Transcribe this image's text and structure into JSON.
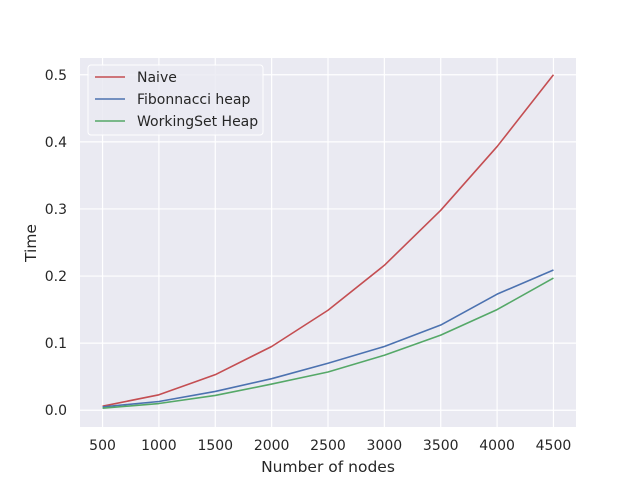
{
  "chart_data": {
    "type": "line",
    "title": "",
    "xlabel": "Number of nodes",
    "ylabel": "Time",
    "x": [
      500,
      1000,
      1500,
      2000,
      2500,
      3000,
      3500,
      4000,
      4500
    ],
    "xlim": [
      300,
      4700
    ],
    "ylim": [
      -0.025,
      0.525
    ],
    "xticks": [
      500,
      1000,
      1500,
      2000,
      2500,
      3000,
      3500,
      4000,
      4500
    ],
    "yticks": [
      0.0,
      0.1,
      0.2,
      0.3,
      0.4,
      0.5
    ],
    "xtick_labels": [
      "500",
      "1000",
      "1500",
      "2000",
      "2500",
      "3000",
      "3500",
      "4000",
      "4500"
    ],
    "ytick_labels": [
      "0.0",
      "0.1",
      "0.2",
      "0.3",
      "0.4",
      "0.5"
    ],
    "grid": true,
    "legend_position": "top-left",
    "background": "#eaeaf2",
    "grid_color": "#ffffff",
    "series": [
      {
        "name": "Naive",
        "color": "#c44e52",
        "values": [
          0.006,
          0.023,
          0.053,
          0.095,
          0.149,
          0.216,
          0.298,
          0.393,
          0.5
        ]
      },
      {
        "name": "Fibonnacci heap",
        "color": "#4c72b0",
        "values": [
          0.005,
          0.013,
          0.028,
          0.047,
          0.07,
          0.095,
          0.127,
          0.173,
          0.209
        ]
      },
      {
        "name": "WorkingSet Heap",
        "color": "#55a868",
        "values": [
          0.003,
          0.01,
          0.022,
          0.039,
          0.057,
          0.082,
          0.112,
          0.15,
          0.197
        ]
      }
    ]
  }
}
